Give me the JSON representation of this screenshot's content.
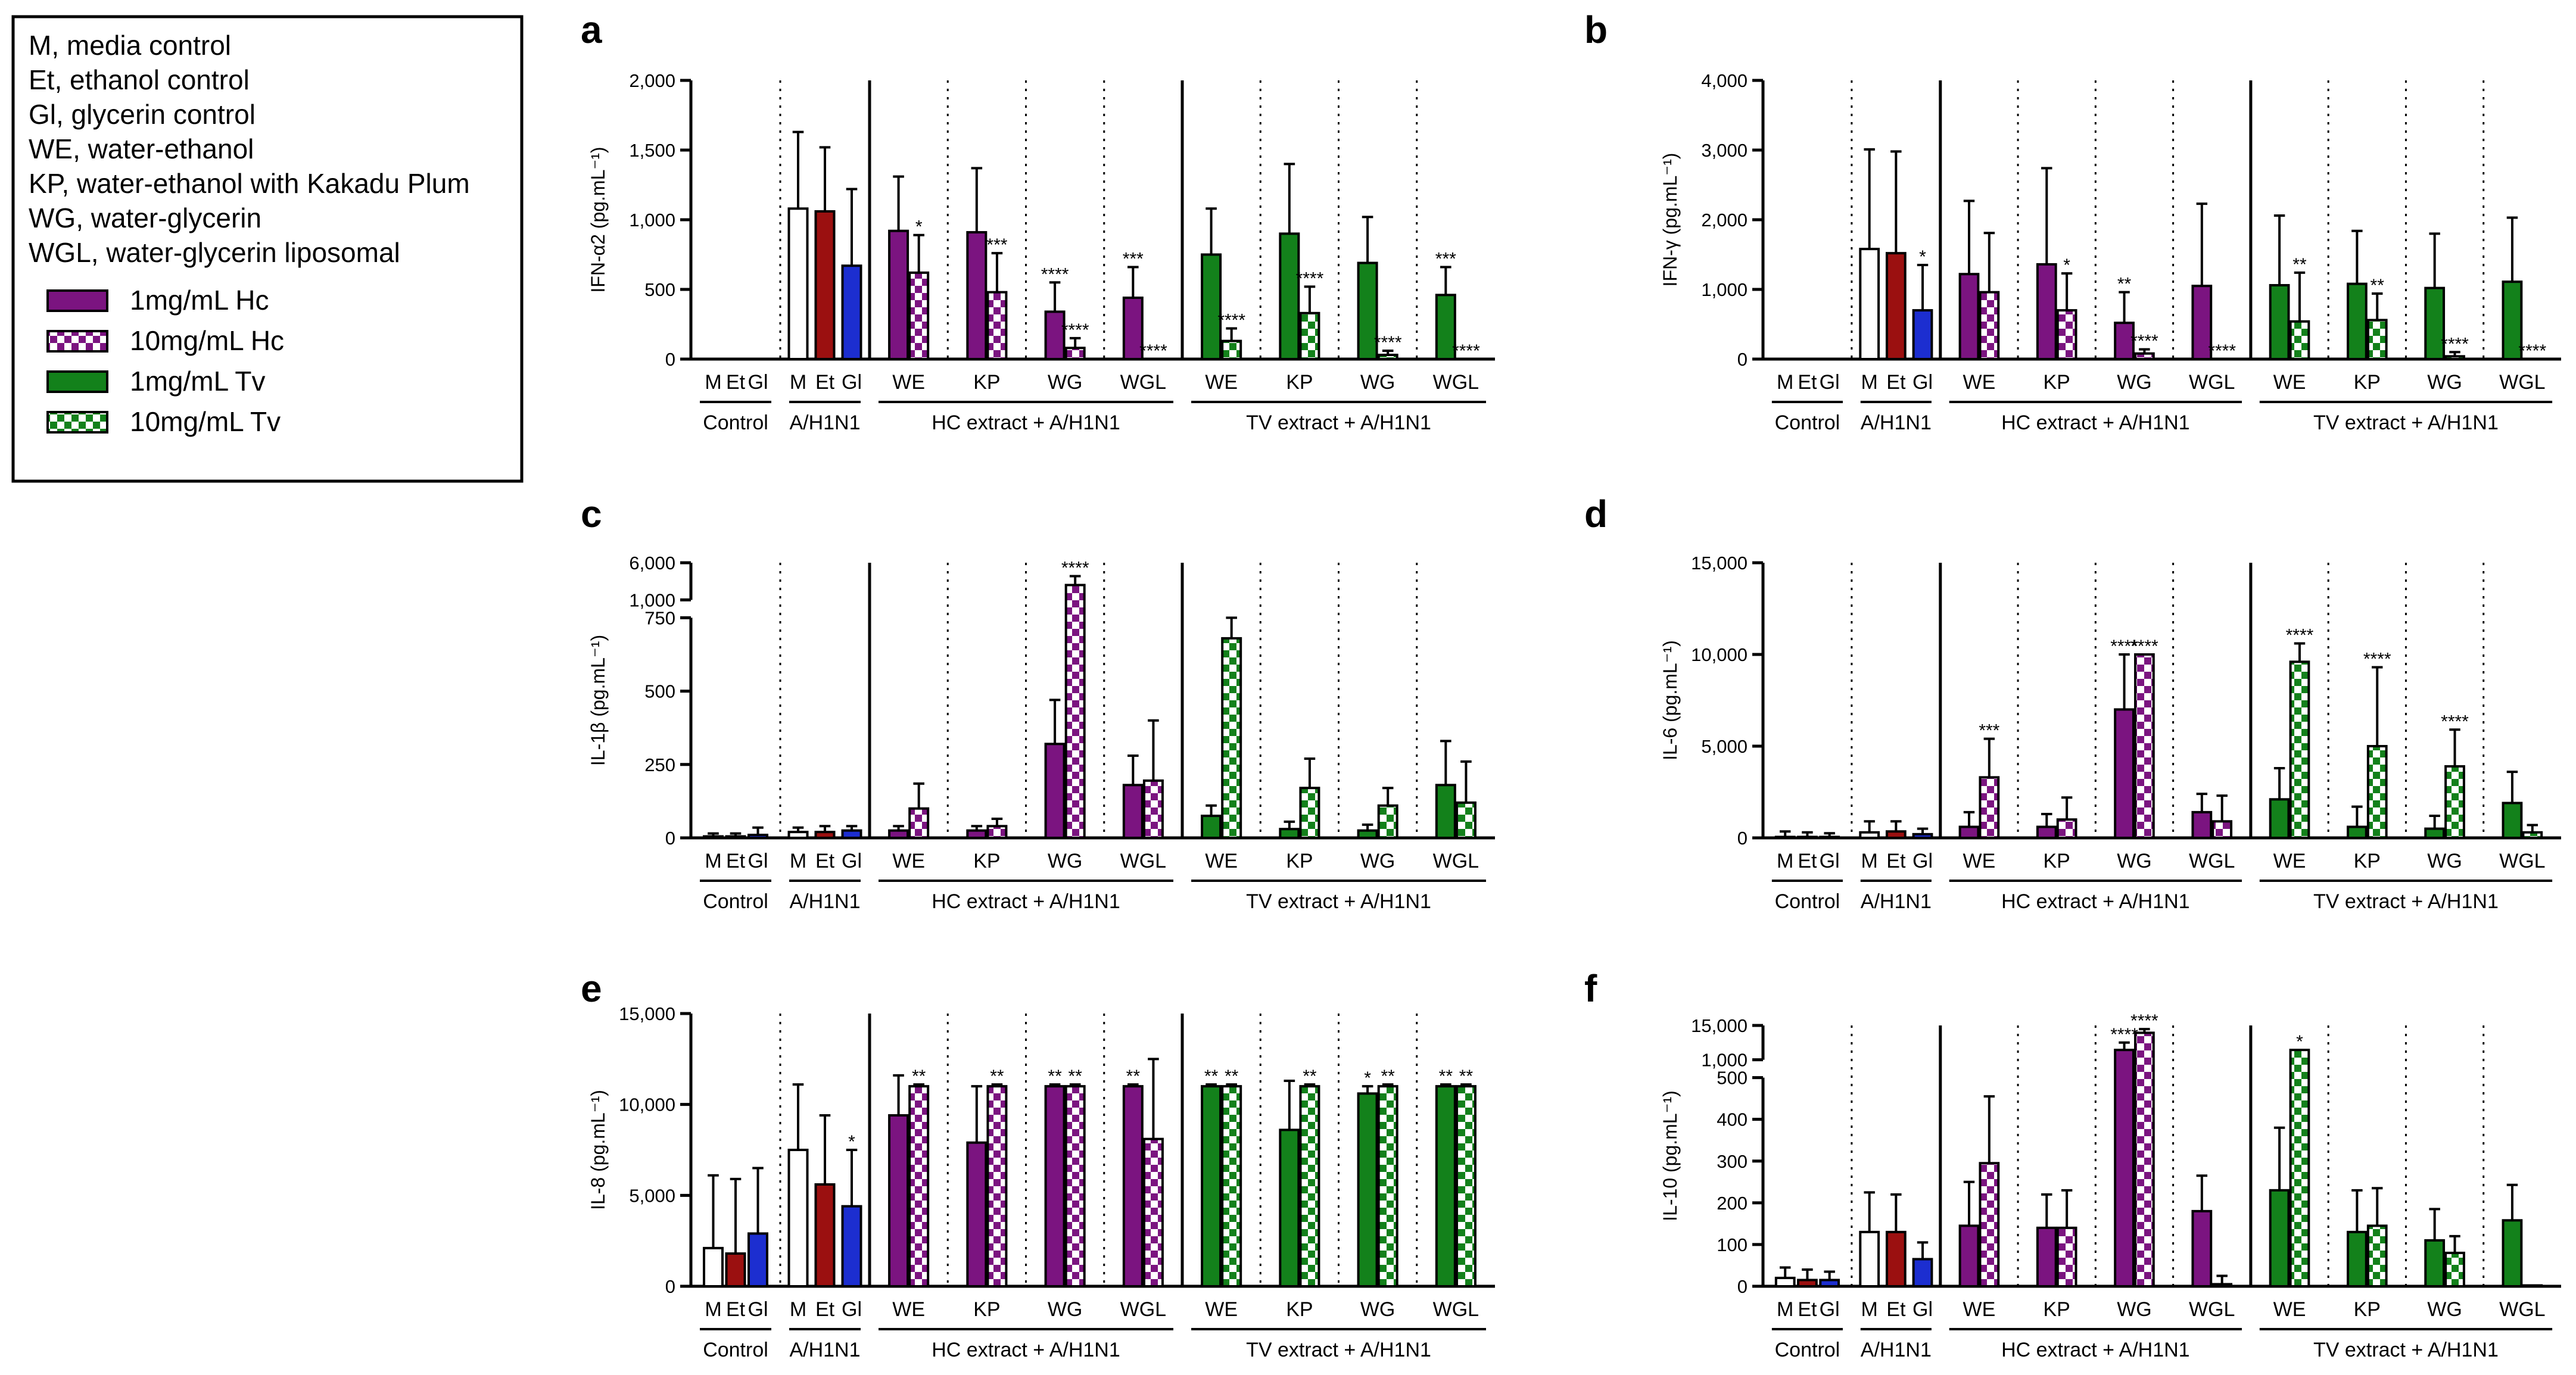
{
  "legend": {
    "abbreviations": [
      "M, media control",
      "Et, ethanol control",
      "Gl, glycerin control",
      "WE, water-ethanol",
      "KP, water-ethanol with Kakadu Plum",
      "WG, water-glycerin",
      "WGL, water-glycerin liposomal"
    ],
    "series": [
      {
        "label": "1mg/mL Hc",
        "color": "#7b1480",
        "pattern": "solid"
      },
      {
        "label": "10mg/mL Hc",
        "color": "#7b1480",
        "pattern": "checker"
      },
      {
        "label": "1mg/mL Tv",
        "color": "#13811b",
        "pattern": "solid"
      },
      {
        "label": "10mg/mL Tv",
        "color": "#13811b",
        "pattern": "checker"
      }
    ]
  },
  "colors": {
    "control_m": "#ffffff",
    "control_et": "#9b1010",
    "control_gl": "#1c2ed0",
    "hc": "#7b1480",
    "tv": "#13811b"
  },
  "groups": {
    "controls": [
      "M",
      "Et",
      "Gl"
    ],
    "extracts": [
      "WE",
      "KP",
      "WG",
      "WGL"
    ],
    "section_labels": [
      "Control",
      "A/H1N1",
      "HC extract + A/H1N1",
      "TV extract + A/H1N1"
    ]
  },
  "chart_data": [
    {
      "panel": "a",
      "type": "bar",
      "ylabel": "IFN-α2 (pg.mL⁻¹)",
      "axis": {
        "segments": [
          {
            "min": 0,
            "max": 2000,
            "ticks": [
              0,
              500,
              1000,
              1500,
              2000
            ],
            "labels": [
              "0",
              "500",
              "1,000",
              "1,500",
              "2,000"
            ]
          }
        ]
      },
      "control": {
        "values": [
          0,
          0,
          0
        ],
        "errors": [
          0,
          0,
          0
        ]
      },
      "h1n1": {
        "values": [
          1080,
          1060,
          670
        ],
        "errors": [
          550,
          460,
          550
        ],
        "sig": [
          "",
          "",
          ""
        ]
      },
      "hc": {
        "values": [
          920,
          620,
          910,
          480,
          340,
          80,
          440,
          0
        ],
        "errors": [
          390,
          270,
          460,
          280,
          210,
          70,
          220,
          0
        ],
        "sig": [
          "",
          "*",
          "",
          "***",
          "****",
          "****",
          "***",
          "****"
        ]
      },
      "tv": {
        "values": [
          750,
          130,
          900,
          330,
          690,
          30,
          460,
          0
        ],
        "errors": [
          330,
          90,
          500,
          190,
          330,
          30,
          200,
          0
        ],
        "sig": [
          "",
          "****",
          "",
          "****",
          "",
          "****",
          "***",
          "****"
        ]
      }
    },
    {
      "panel": "b",
      "type": "bar",
      "ylabel": "IFN-γ (pg.mL⁻¹)",
      "axis": {
        "segments": [
          {
            "min": 0,
            "max": 4000,
            "ticks": [
              0,
              1000,
              2000,
              3000,
              4000
            ],
            "labels": [
              "0",
              "1,000",
              "2,000",
              "3,000",
              "4,000"
            ]
          }
        ]
      },
      "control": {
        "values": [
          0,
          0,
          0
        ],
        "errors": [
          0,
          0,
          0
        ]
      },
      "h1n1": {
        "values": [
          1580,
          1520,
          700
        ],
        "errors": [
          1430,
          1460,
          650
        ],
        "sig": [
          "",
          "",
          "*"
        ]
      },
      "hc": {
        "values": [
          1220,
          960,
          1360,
          700,
          520,
          80,
          1050,
          0
        ],
        "errors": [
          1050,
          850,
          1380,
          530,
          440,
          60,
          1180,
          0
        ],
        "sig": [
          "",
          "",
          "",
          "*",
          "**",
          "****",
          "",
          "****"
        ]
      },
      "tv": {
        "values": [
          1060,
          540,
          1080,
          560,
          1020,
          40,
          1110,
          0
        ],
        "errors": [
          1000,
          700,
          760,
          380,
          780,
          60,
          920,
          0
        ],
        "sig": [
          "",
          "**",
          "",
          "**",
          "",
          "****",
          "",
          "****"
        ]
      }
    },
    {
      "panel": "c",
      "type": "bar",
      "ylabel": "IL-1β (pg.mL⁻¹)",
      "axis": {
        "segments": [
          {
            "min": 0,
            "max": 750,
            "ticks": [
              0,
              250,
              500,
              750
            ],
            "labels": [
              "0",
              "250",
              "500",
              "750"
            ]
          },
          {
            "min": 1000,
            "max": 6000,
            "ticks": [
              1000,
              6000
            ],
            "labels": [
              "1,000",
              "6,000"
            ]
          }
        ]
      },
      "control": {
        "values": [
          5,
          5,
          10
        ],
        "errors": [
          10,
          10,
          25
        ],
        "sig": [
          "",
          "",
          ""
        ]
      },
      "h1n1": {
        "values": [
          20,
          20,
          25
        ],
        "errors": [
          15,
          20,
          15
        ],
        "sig": [
          "",
          "",
          ""
        ]
      },
      "hc": {
        "values": [
          25,
          100,
          25,
          40,
          320,
          3000,
          180,
          195
        ],
        "errors": [
          15,
          85,
          15,
          25,
          150,
          1200,
          100,
          205
        ],
        "sig": [
          "",
          "",
          "",
          "",
          "",
          "****",
          "",
          ""
        ]
      },
      "tv": {
        "values": [
          75,
          680,
          30,
          170,
          25,
          110,
          180,
          120
        ],
        "errors": [
          35,
          70,
          25,
          100,
          20,
          60,
          150,
          140
        ],
        "sig": [
          "",
          "",
          "",
          "",
          "",
          "",
          "",
          ""
        ]
      }
    },
    {
      "panel": "d",
      "type": "bar",
      "ylabel": "IL-6 (pg.mL⁻¹)",
      "axis": {
        "segments": [
          {
            "min": 0,
            "max": 15000,
            "ticks": [
              0,
              5000,
              10000,
              15000
            ],
            "labels": [
              "0",
              "5,000",
              "10,000",
              "15,000"
            ]
          }
        ]
      },
      "control": {
        "values": [
          50,
          50,
          50
        ],
        "errors": [
          300,
          250,
          200
        ]
      },
      "h1n1": {
        "values": [
          300,
          350,
          200
        ],
        "errors": [
          600,
          550,
          300
        ],
        "sig": [
          "",
          "",
          ""
        ]
      },
      "hc": {
        "values": [
          600,
          3300,
          600,
          1000,
          7000,
          10000,
          1400,
          900
        ],
        "errors": [
          800,
          2100,
          700,
          1200,
          3000,
          0,
          1000,
          1400
        ],
        "sig": [
          "",
          "***",
          "",
          "",
          "****",
          "****",
          "",
          ""
        ]
      },
      "tv": {
        "values": [
          2100,
          9600,
          600,
          5000,
          500,
          3900,
          1900,
          300
        ],
        "errors": [
          1700,
          1000,
          1100,
          4300,
          700,
          2000,
          1700,
          400
        ],
        "sig": [
          "",
          "****",
          "",
          "****",
          "",
          "****",
          "",
          ""
        ]
      }
    },
    {
      "panel": "e",
      "type": "bar",
      "ylabel": "IL-8 (pg.mL⁻¹)",
      "axis": {
        "segments": [
          {
            "min": 0,
            "max": 15000,
            "ticks": [
              0,
              5000,
              10000,
              15000
            ],
            "labels": [
              "0",
              "5,000",
              "10,000",
              "15,000"
            ]
          }
        ]
      },
      "control": {
        "values": [
          2100,
          1800,
          2900
        ],
        "errors": [
          4000,
          4100,
          3600
        ]
      },
      "h1n1": {
        "values": [
          7500,
          5600,
          4400
        ],
        "errors": [
          3600,
          3800,
          3100
        ],
        "sig": [
          "",
          "",
          "*"
        ]
      },
      "hc": {
        "values": [
          9400,
          11000,
          7900,
          11000,
          11000,
          11000,
          11000,
          8100
        ],
        "errors": [
          2200,
          100,
          3100,
          100,
          100,
          100,
          100,
          4400
        ],
        "sig": [
          "",
          "**",
          "",
          "**",
          "**",
          "**",
          "**",
          ""
        ]
      },
      "tv": {
        "values": [
          11000,
          11000,
          8600,
          11000,
          10600,
          11000,
          11000,
          11000
        ],
        "errors": [
          100,
          100,
          2700,
          100,
          400,
          100,
          100,
          100
        ],
        "sig": [
          "**",
          "**",
          "",
          "**",
          "*",
          "**",
          "**",
          "**"
        ]
      }
    },
    {
      "panel": "f",
      "type": "bar",
      "ylabel": "IL-10 (pg.mL⁻¹)",
      "axis": {
        "segments": [
          {
            "min": 0,
            "max": 500,
            "ticks": [
              0,
              100,
              200,
              300,
              400,
              500
            ],
            "labels": [
              "0",
              "100",
              "200",
              "300",
              "400",
              "500"
            ]
          },
          {
            "min": 1000,
            "max": 15000,
            "ticks": [
              1000,
              15000
            ],
            "labels": [
              "1,000",
              "15,000"
            ]
          }
        ]
      },
      "control": {
        "values": [
          20,
          15,
          15
        ],
        "errors": [
          25,
          25,
          20
        ]
      },
      "h1n1": {
        "values": [
          130,
          130,
          65
        ],
        "errors": [
          95,
          90,
          40
        ],
        "sig": [
          "",
          "",
          ""
        ]
      },
      "hc": {
        "values": [
          145,
          295,
          140,
          140,
          5000,
          12000,
          180,
          5
        ],
        "errors": [
          105,
          160,
          80,
          90,
          3000,
          1500,
          85,
          20
        ],
        "sig": [
          "",
          "",
          "",
          "",
          "****",
          "****",
          "",
          ""
        ]
      },
      "tv": {
        "values": [
          230,
          5000,
          130,
          145,
          110,
          80,
          158,
          2
        ],
        "errors": [
          150,
          0,
          100,
          90,
          75,
          40,
          85,
          0
        ],
        "sig": [
          "",
          "*",
          "",
          "",
          "",
          "",
          "",
          ""
        ]
      }
    }
  ]
}
